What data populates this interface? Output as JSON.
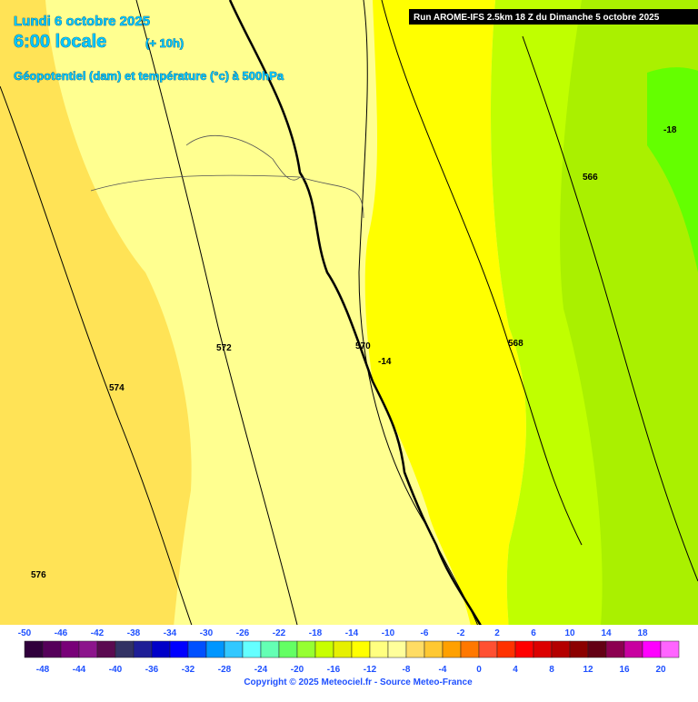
{
  "header": {
    "date": "Lundi 6 octobre 2025",
    "time": "6:00 locale",
    "lead": "(+ 10h)",
    "subtitle": "Géopotentiel (dam) et température (°c) à 500hPa"
  },
  "run_info": "Run AROME-IFS 2.5km 18 Z du Dimanche 5 octobre 2025",
  "contour_labels": [
    "572",
    "570",
    "574",
    "576",
    "566",
    "568",
    "-14",
    "-18"
  ],
  "legend": {
    "steps": [
      {
        "value": -50,
        "color": "#30003c"
      },
      {
        "value": -48,
        "color": "#55005a"
      },
      {
        "value": -46,
        "color": "#780078"
      },
      {
        "value": -44,
        "color": "#8c148c"
      },
      {
        "value": -42,
        "color": "#5a0a50"
      },
      {
        "value": -40,
        "color": "#323264"
      },
      {
        "value": -38,
        "color": "#1e1e96"
      },
      {
        "value": -36,
        "color": "#0000c8"
      },
      {
        "value": -34,
        "color": "#0000ff"
      },
      {
        "value": -32,
        "color": "#0050ff"
      },
      {
        "value": -30,
        "color": "#0096ff"
      },
      {
        "value": -28,
        "color": "#32c8ff"
      },
      {
        "value": -26,
        "color": "#64ffff"
      },
      {
        "value": -24,
        "color": "#64ffb4"
      },
      {
        "value": -22,
        "color": "#64ff64"
      },
      {
        "value": -20,
        "color": "#96ff32"
      },
      {
        "value": -18,
        "color": "#c8ff00"
      },
      {
        "value": -16,
        "color": "#e6f000"
      },
      {
        "value": -14,
        "color": "#ffff00"
      },
      {
        "value": -12,
        "color": "#ffff80"
      },
      {
        "value": -10,
        "color": "#ffff9b"
      },
      {
        "value": -8,
        "color": "#ffdc64"
      },
      {
        "value": -6,
        "color": "#ffc832"
      },
      {
        "value": -4,
        "color": "#ffa000"
      },
      {
        "value": -2,
        "color": "#ff7800"
      },
      {
        "value": 0,
        "color": "#ff5032"
      },
      {
        "value": 2,
        "color": "#ff3200"
      },
      {
        "value": 4,
        "color": "#ff0000"
      },
      {
        "value": 6,
        "color": "#dc0000"
      },
      {
        "value": 8,
        "color": "#b40000"
      },
      {
        "value": 10,
        "color": "#8c0000"
      },
      {
        "value": 12,
        "color": "#640014"
      },
      {
        "value": 14,
        "color": "#8c0050"
      },
      {
        "value": 16,
        "color": "#c800a0"
      },
      {
        "value": 18,
        "color": "#ff00ff"
      },
      {
        "value": 20,
        "color": "#ff64ff"
      }
    ]
  },
  "copyright": "Copyright © 2025 Meteociel.fr - Source Meteo-France"
}
